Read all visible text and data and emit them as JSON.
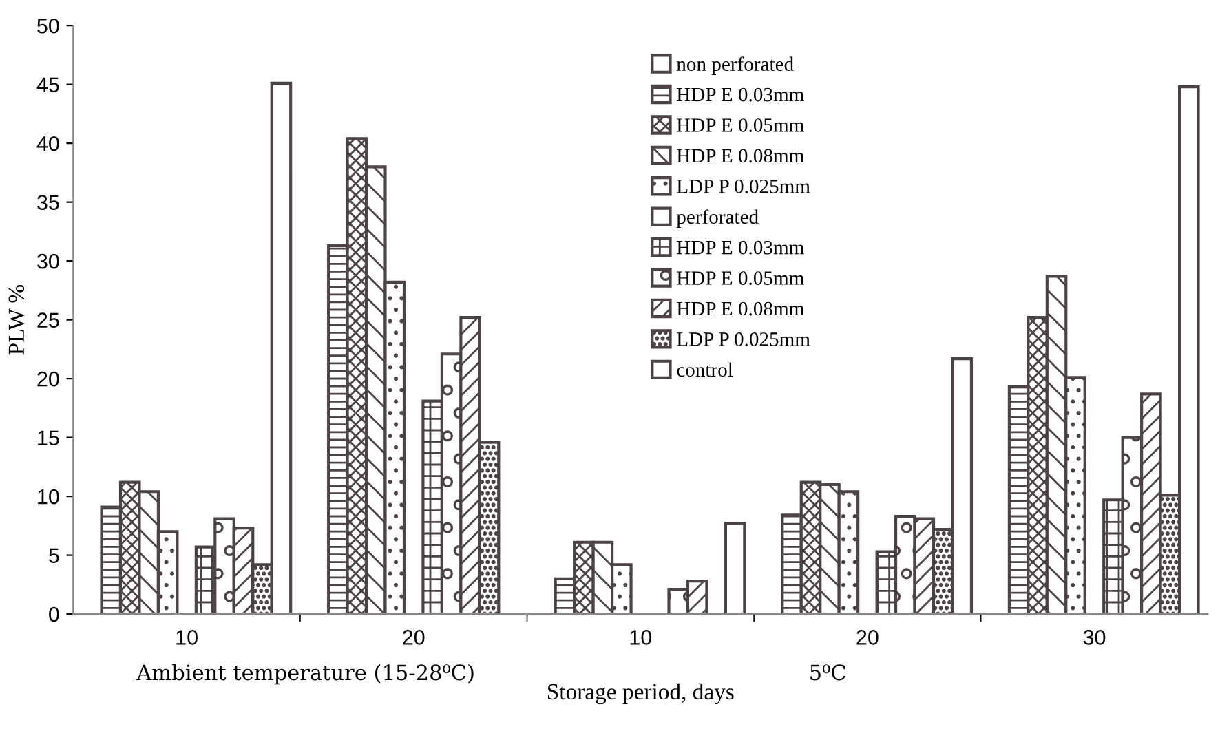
{
  "chart_data": {
    "type": "bar",
    "xlabel": "Storage period, days",
    "ylabel": "PLW %",
    "categories": [
      "10",
      "20",
      "10",
      "20",
      "30"
    ],
    "annotations": [
      "Ambient temperature (15-28⁰C)",
      "5⁰C"
    ],
    "ylim": [
      0,
      50
    ],
    "yticks": [
      0,
      5,
      10,
      15,
      20,
      25,
      30,
      35,
      40,
      45,
      50
    ],
    "grid": false,
    "legend": "top",
    "series": [
      {
        "name": "non perforated",
        "color": "#4d4344",
        "values": [
          null,
          null,
          null,
          null,
          null
        ]
      },
      {
        "name": "HDP E 0.03mm",
        "color": "#4d4344",
        "values": [
          9.1,
          31.3,
          3.0,
          8.4,
          19.3
        ]
      },
      {
        "name": "HDP E 0.05mm",
        "color": "#4d4344",
        "values": [
          11.2,
          40.4,
          6.1,
          11.2,
          25.2
        ]
      },
      {
        "name": "HDP E 0.08mm",
        "color": "#4d4344",
        "values": [
          10.4,
          38.0,
          6.1,
          11.0,
          28.7
        ]
      },
      {
        "name": "LDP P 0.025mm",
        "color": "#4d4344",
        "values": [
          7.0,
          28.2,
          4.2,
          10.4,
          20.1
        ]
      },
      {
        "name": "perforated",
        "color": "#4d4344",
        "values": [
          null,
          null,
          null,
          null,
          null
        ]
      },
      {
        "name": "HDP E 0.03mm",
        "color": "#4d4344",
        "values": [
          5.7,
          18.1,
          null,
          5.3,
          9.7
        ]
      },
      {
        "name": "HDP E 0.05mm",
        "color": "#4d4344",
        "values": [
          8.1,
          22.1,
          2.1,
          8.3,
          15.0
        ]
      },
      {
        "name": "HDP E 0.08mm",
        "color": "#4d4344",
        "values": [
          7.3,
          25.2,
          2.8,
          8.1,
          18.7
        ]
      },
      {
        "name": "LDP P 0.025mm",
        "color": "#4d4344",
        "values": [
          4.2,
          14.6,
          null,
          7.2,
          10.1
        ]
      },
      {
        "name": "control",
        "color": "#4d4344",
        "values": [
          45.1,
          null,
          7.7,
          21.7,
          44.8
        ]
      }
    ]
  }
}
